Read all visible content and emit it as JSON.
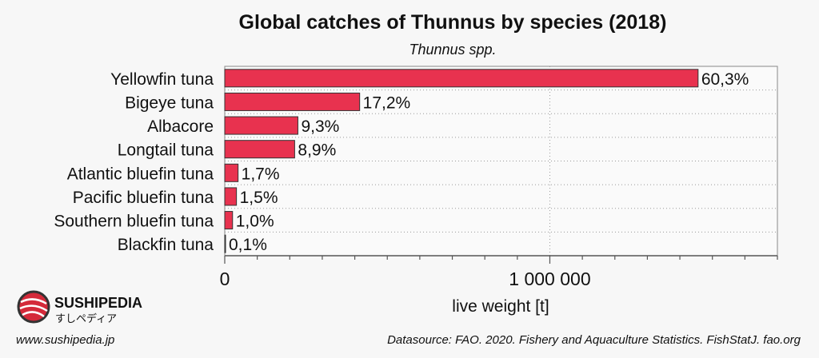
{
  "chart_data": {
    "type": "bar",
    "orientation": "horizontal",
    "title": "Global catches of Thunnus by species (2018)",
    "subtitle": "Thunnus spp.",
    "xlabel": "live weight [t]",
    "ylabel": "",
    "xlim": [
      0,
      1700000
    ],
    "xticks": [
      0,
      1000000
    ],
    "xtick_labels": [
      "0",
      "1 000 000"
    ],
    "minor_tick_step": 100000,
    "grid": true,
    "categories": [
      "Yellowfin tuna",
      "Bigeye tuna",
      "Albacore",
      "Longtail tuna",
      "Atlantic bluefin tuna",
      "Pacific bluefin tuna",
      "Southern bluefin tuna",
      "Blackfin tuna"
    ],
    "values": [
      1456000,
      415000,
      225000,
      215000,
      41000,
      36000,
      24000,
      2400
    ],
    "data_labels": [
      "60,3%",
      "17,2%",
      "9,3%",
      "8,9%",
      "1,7%",
      "1,5%",
      "1,0%",
      "0,1%"
    ],
    "bar_color": "#e8324f"
  },
  "branding": {
    "logo_name": "SUSHIPEDIA",
    "logo_kana": "すしペディア",
    "website": "www.sushipedia.jp"
  },
  "source": "Datasource: FAO. 2020. Fishery and Aquaculture Statistics. FishStatJ. fao.org"
}
